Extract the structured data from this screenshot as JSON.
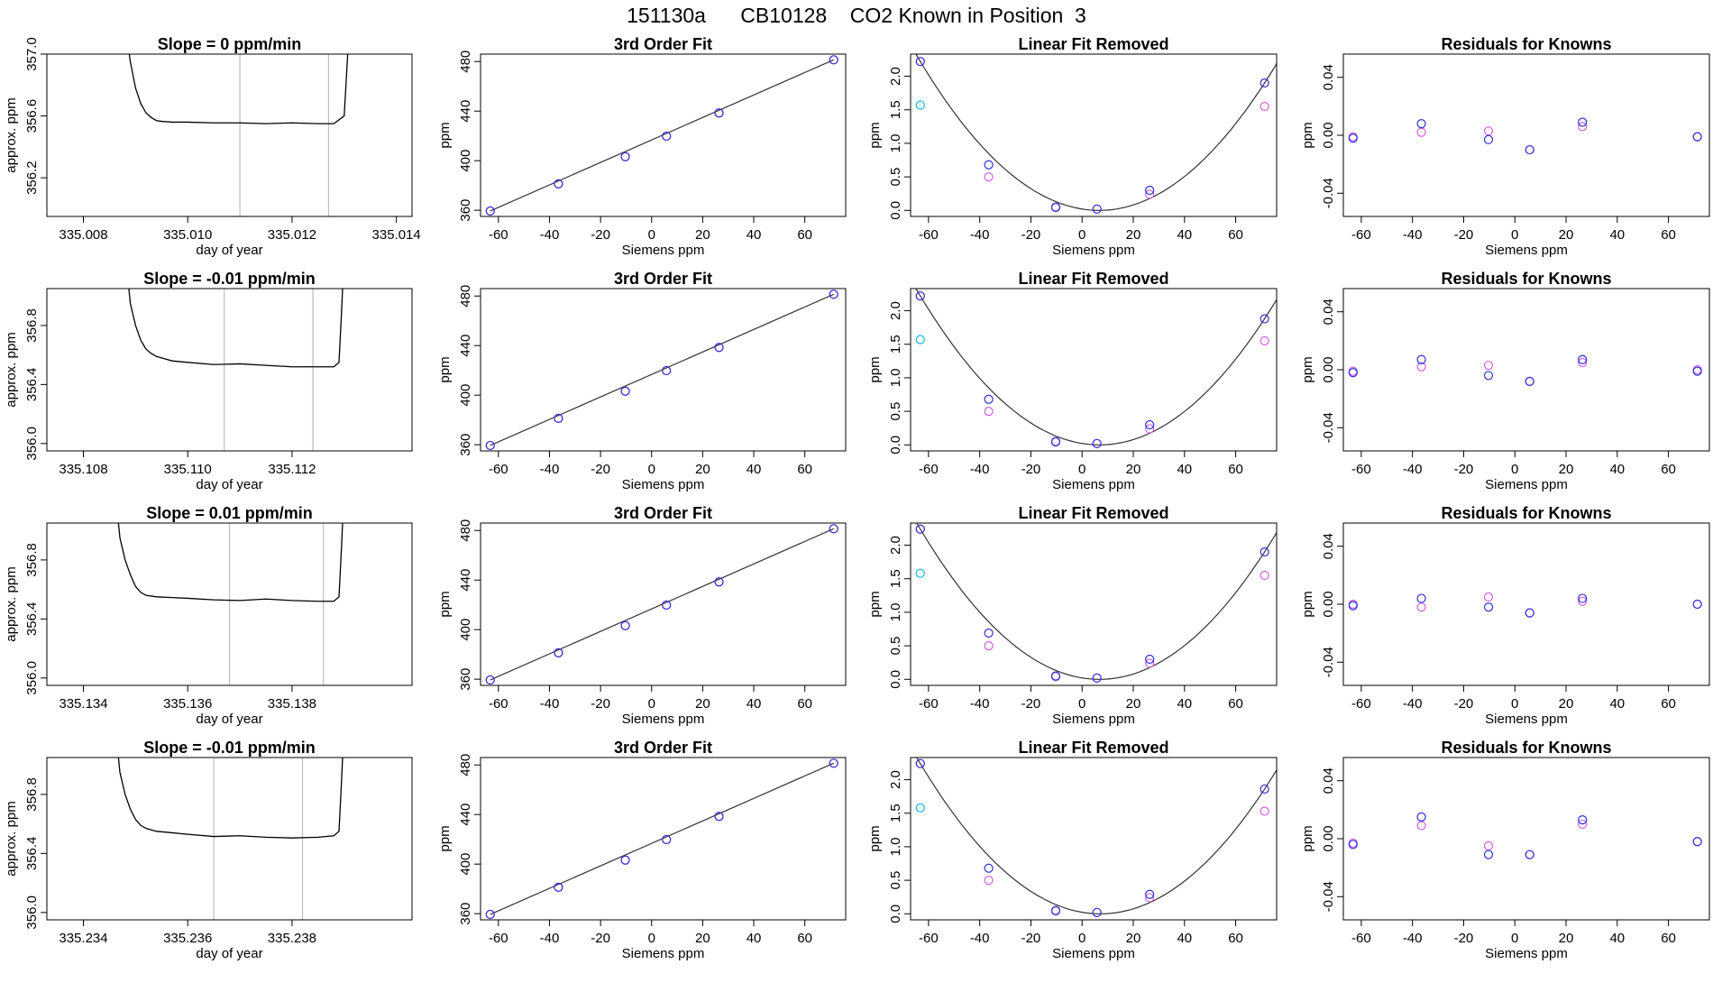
{
  "title": "151130a      CB10128    CO2 Known in Position  3",
  "colors": {
    "line": "#000000",
    "blue": "#2f2fd8",
    "magenta": "#d35fe3",
    "cyan": "#22b8e6",
    "red": "#e05050",
    "gray": "#bdbdbd"
  },
  "chart_data": [
    {
      "type": "line",
      "row": 0,
      "title": "Slope =  0  ppm/min",
      "xlabel": "day of year",
      "ylabel": "approx. ppm",
      "xlim": [
        335.0073,
        335.0143
      ],
      "ylim": [
        355.95,
        357.0
      ],
      "xticks": [
        335.008,
        335.01,
        335.012,
        335.014
      ],
      "xtick_labels": [
        "335.008",
        "335.010",
        "335.012",
        "335.014"
      ],
      "yticks": [
        356.2,
        356.6,
        357.0
      ],
      "ytick_labels": [
        "356.2",
        "356.6",
        "357.0"
      ],
      "vlines": [
        335.011,
        335.0127
      ],
      "x": [
        335.0088,
        335.0089,
        335.009,
        335.0091,
        335.0092,
        335.0093,
        335.0094,
        335.0095,
        335.0097,
        335.01,
        335.0105,
        335.011,
        335.0115,
        335.012,
        335.0125,
        335.0128,
        335.013,
        335.01305,
        335.0131
      ],
      "y": [
        357.2,
        356.95,
        356.78,
        356.68,
        356.62,
        356.59,
        356.57,
        356.565,
        356.56,
        356.56,
        356.555,
        356.555,
        356.55,
        356.555,
        356.55,
        356.55,
        356.6,
        356.9,
        357.2
      ]
    },
    {
      "type": "line",
      "row": 1,
      "title": "Slope =  -0.01  ppm/min",
      "xlabel": "day of year",
      "ylabel": "approx. ppm",
      "xlim": [
        335.1073,
        335.1143
      ],
      "ylim": [
        355.95,
        357.05
      ],
      "xticks": [
        335.108,
        335.11,
        335.112
      ],
      "xtick_labels": [
        "335.108",
        "335.110",
        "335.112"
      ],
      "yticks": [
        356.0,
        356.4,
        356.8
      ],
      "ytick_labels": [
        "356.0",
        "356.4",
        "356.8"
      ],
      "vlines": [
        335.1107,
        335.1124
      ],
      "x": [
        335.1088,
        335.1089,
        335.109,
        335.1091,
        335.1092,
        335.1093,
        335.1094,
        335.1095,
        335.1097,
        335.11,
        335.1105,
        335.111,
        335.1115,
        335.112,
        335.1125,
        335.1128,
        335.1129,
        335.11295,
        335.113
      ],
      "y": [
        357.3,
        356.95,
        356.8,
        356.7,
        356.64,
        356.61,
        356.59,
        356.58,
        356.56,
        356.55,
        356.535,
        356.54,
        356.53,
        356.52,
        356.52,
        356.52,
        356.55,
        356.9,
        357.3
      ]
    },
    {
      "type": "line",
      "row": 2,
      "title": "Slope =  0.01  ppm/min",
      "xlabel": "day of year",
      "ylabel": "approx. ppm",
      "xlim": [
        335.1333,
        335.1403
      ],
      "ylim": [
        355.95,
        357.05
      ],
      "xticks": [
        335.134,
        335.136,
        335.138
      ],
      "xtick_labels": [
        "335.134",
        "335.136",
        "335.138"
      ],
      "yticks": [
        356.0,
        356.4,
        356.8
      ],
      "ytick_labels": [
        "356.0",
        "356.4",
        "356.8"
      ],
      "vlines": [
        335.1368,
        335.1386
      ],
      "x": [
        335.1346,
        335.1347,
        335.1348,
        335.1349,
        335.135,
        335.1351,
        335.1352,
        335.1354,
        335.1357,
        335.136,
        335.1365,
        335.137,
        335.1375,
        335.138,
        335.1385,
        335.1388,
        335.1389,
        335.13895,
        335.139
      ],
      "y": [
        357.3,
        356.95,
        356.8,
        356.7,
        356.62,
        356.58,
        356.56,
        356.55,
        356.545,
        356.54,
        356.53,
        356.525,
        356.535,
        356.525,
        356.52,
        356.52,
        356.55,
        356.9,
        357.3
      ]
    },
    {
      "type": "line",
      "row": 3,
      "title": "Slope =  -0.01  ppm/min",
      "xlabel": "day of year",
      "ylabel": "approx. ppm",
      "xlim": [
        335.2333,
        335.2403
      ],
      "ylim": [
        355.95,
        357.05
      ],
      "xticks": [
        335.234,
        335.236,
        335.238
      ],
      "xtick_labels": [
        "335.234",
        "335.236",
        "335.238"
      ],
      "yticks": [
        356.0,
        356.4,
        356.8
      ],
      "ytick_labels": [
        "356.0",
        "356.4",
        "356.8"
      ],
      "vlines": [
        335.2365,
        335.2382
      ],
      "x": [
        335.2346,
        335.2347,
        335.2348,
        335.2349,
        335.235,
        335.2351,
        335.2352,
        335.2354,
        335.2357,
        335.236,
        335.2365,
        335.237,
        335.2375,
        335.238,
        335.2385,
        335.2388,
        335.2389,
        335.23895,
        335.239
      ],
      "y": [
        357.3,
        356.95,
        356.8,
        356.7,
        356.63,
        356.59,
        356.57,
        356.55,
        356.54,
        356.53,
        356.515,
        356.52,
        356.51,
        356.505,
        356.51,
        356.52,
        356.55,
        356.9,
        357.3
      ]
    },
    {
      "type": "scatter",
      "row": 0,
      "col": 1,
      "title": "3rd Order Fit",
      "xlabel": "Siemens ppm",
      "ylabel": "ppm",
      "xlim": [
        -67,
        76
      ],
      "ylim": [
        355,
        486
      ],
      "xticks": [
        -60,
        -40,
        -20,
        0,
        20,
        40,
        60
      ],
      "yticks": [
        360,
        400,
        440,
        480
      ],
      "fit": "line",
      "x": [
        -63.2,
        -36.5,
        -10.3,
        5.8,
        26.4,
        71.3
      ],
      "y_blue": [
        359.4,
        381.3,
        403.2,
        419.8,
        438.5,
        481.4
      ],
      "y_magenta": [
        359.4,
        381.3,
        403.2,
        419.8,
        438.5,
        481.4
      ]
    },
    {
      "type": "scatter",
      "row": 1,
      "col": 1,
      "title": "3rd Order Fit",
      "xlabel": "Siemens ppm",
      "ylabel": "ppm",
      "xlim": [
        -67,
        76
      ],
      "ylim": [
        355,
        486
      ],
      "xticks": [
        -60,
        -40,
        -20,
        0,
        20,
        40,
        60
      ],
      "yticks": [
        360,
        400,
        440,
        480
      ],
      "fit": "line",
      "x": [
        -63.2,
        -36.5,
        -10.3,
        5.8,
        26.4,
        71.3
      ],
      "y_blue": [
        359.4,
        381.3,
        403.2,
        419.8,
        438.5,
        481.4
      ],
      "y_magenta": [
        359.4,
        381.3,
        403.2,
        419.8,
        438.5,
        481.4
      ]
    },
    {
      "type": "scatter",
      "row": 2,
      "col": 1,
      "title": "3rd Order Fit",
      "xlabel": "Siemens ppm",
      "ylabel": "ppm",
      "xlim": [
        -67,
        76
      ],
      "ylim": [
        355,
        486
      ],
      "xticks": [
        -60,
        -40,
        -20,
        0,
        20,
        40,
        60
      ],
      "yticks": [
        360,
        400,
        440,
        480
      ],
      "fit": "line",
      "x": [
        -63.2,
        -36.5,
        -10.3,
        5.8,
        26.4,
        71.3
      ],
      "y_blue": [
        359.4,
        381.3,
        403.2,
        419.8,
        438.5,
        481.4
      ],
      "y_magenta": [
        359.4,
        381.3,
        403.2,
        419.8,
        438.5,
        481.4
      ]
    },
    {
      "type": "scatter",
      "row": 3,
      "col": 1,
      "title": "3rd Order Fit",
      "xlabel": "Siemens ppm",
      "ylabel": "ppm",
      "xlim": [
        -67,
        76
      ],
      "ylim": [
        355,
        486
      ],
      "xticks": [
        -60,
        -40,
        -20,
        0,
        20,
        40,
        60
      ],
      "yticks": [
        360,
        400,
        440,
        480
      ],
      "fit": "line",
      "x": [
        -63.2,
        -36.5,
        -10.3,
        5.8,
        26.4,
        71.3
      ],
      "y_blue": [
        359.4,
        381.3,
        403.2,
        419.8,
        438.5,
        481.4
      ],
      "y_magenta": [
        359.4,
        381.3,
        403.2,
        419.8,
        438.5,
        481.4
      ]
    },
    {
      "type": "scatter",
      "row": 0,
      "col": 2,
      "title": "Linear Fit Removed",
      "xlabel": "Siemens ppm",
      "ylabel": "ppm",
      "xlim": [
        -67,
        76
      ],
      "ylim": [
        -0.09,
        2.33
      ],
      "xticks": [
        -60,
        -40,
        -20,
        0,
        20,
        40,
        60
      ],
      "yticks": [
        0.0,
        0.5,
        1.0,
        1.5,
        2.0
      ],
      "ytick_labels": [
        "0.0",
        "0.5",
        "1.0",
        "1.5",
        "2.0"
      ],
      "fit": "curve",
      "x": [
        -63.2,
        -36.5,
        -10.3,
        5.8,
        26.4,
        71.3
      ],
      "y_blue": [
        2.22,
        0.68,
        0.05,
        0.02,
        0.3,
        1.9
      ],
      "y_magenta": [
        2.22,
        0.5,
        0.04,
        0.02,
        0.24,
        1.55
      ],
      "cyan": [
        -63.2,
        1.57
      ]
    },
    {
      "type": "scatter",
      "row": 1,
      "col": 2,
      "title": "Linear Fit Removed",
      "xlabel": "Siemens ppm",
      "ylabel": "ppm",
      "xlim": [
        -67,
        76
      ],
      "ylim": [
        -0.09,
        2.33
      ],
      "xticks": [
        -60,
        -40,
        -20,
        0,
        20,
        40,
        60
      ],
      "yticks": [
        0.0,
        0.5,
        1.0,
        1.5,
        2.0
      ],
      "ytick_labels": [
        "0.0",
        "0.5",
        "1.0",
        "1.5",
        "2.0"
      ],
      "fit": "curve",
      "x": [
        -63.2,
        -36.5,
        -10.3,
        5.8,
        26.4,
        71.3
      ],
      "y_blue": [
        2.22,
        0.68,
        0.05,
        0.02,
        0.3,
        1.88
      ],
      "y_magenta": [
        2.22,
        0.5,
        0.04,
        0.02,
        0.24,
        1.55
      ],
      "cyan": [
        -63.2,
        1.57
      ]
    },
    {
      "type": "scatter",
      "row": 2,
      "col": 2,
      "title": "Linear Fit Removed",
      "xlabel": "Siemens ppm",
      "ylabel": "ppm",
      "xlim": [
        -67,
        76
      ],
      "ylim": [
        -0.09,
        2.33
      ],
      "xticks": [
        -60,
        -40,
        -20,
        0,
        20,
        40,
        60
      ],
      "yticks": [
        0.0,
        0.5,
        1.0,
        1.5,
        2.0
      ],
      "ytick_labels": [
        "0.0",
        "0.5",
        "1.0",
        "1.5",
        "2.0"
      ],
      "fit": "curve",
      "x": [
        -63.2,
        -36.5,
        -10.3,
        5.8,
        26.4,
        71.3
      ],
      "y_blue": [
        2.24,
        0.69,
        0.05,
        0.02,
        0.3,
        1.9
      ],
      "y_magenta": [
        2.24,
        0.5,
        0.04,
        0.02,
        0.24,
        1.55
      ],
      "cyan": [
        -63.2,
        1.58
      ]
    },
    {
      "type": "scatter",
      "row": 3,
      "col": 2,
      "title": "Linear Fit Removed",
      "xlabel": "Siemens ppm",
      "ylabel": "ppm",
      "xlim": [
        -67,
        76
      ],
      "ylim": [
        -0.09,
        2.33
      ],
      "xticks": [
        -60,
        -40,
        -20,
        0,
        20,
        40,
        60
      ],
      "yticks": [
        0.0,
        0.5,
        1.0,
        1.5,
        2.0
      ],
      "ytick_labels": [
        "0.0",
        "0.5",
        "1.0",
        "1.5",
        "2.0"
      ],
      "fit": "curve",
      "x": [
        -63.2,
        -36.5,
        -10.3,
        5.8,
        26.4,
        71.3
      ],
      "y_blue": [
        2.24,
        0.68,
        0.05,
        0.02,
        0.29,
        1.86
      ],
      "y_magenta": [
        2.24,
        0.5,
        0.04,
        0.02,
        0.24,
        1.53
      ],
      "cyan": [
        -63.2,
        1.58
      ]
    },
    {
      "type": "scatter",
      "row": 0,
      "col": 3,
      "title": "Residuals for Knowns",
      "xlabel": "Siemens ppm",
      "ylabel": "ppm",
      "xlim": [
        -67,
        76
      ],
      "ylim": [
        -0.056,
        0.056
      ],
      "xticks": [
        -60,
        -40,
        -20,
        0,
        20,
        40,
        60
      ],
      "yticks": [
        -0.04,
        0.0,
        0.04
      ],
      "ytick_labels": [
        "-0.04",
        "0.00",
        "0.04"
      ],
      "x": [
        -63.2,
        -36.5,
        -10.3,
        5.8,
        26.4,
        71.3
      ],
      "y_blue": [
        -0.002,
        0.008,
        -0.003,
        -0.01,
        0.009,
        -0.001
      ],
      "y_magenta": [
        -0.001,
        0.002,
        0.003,
        -0.01,
        0.006,
        -0.001
      ]
    },
    {
      "type": "scatter",
      "row": 1,
      "col": 3,
      "title": "Residuals for Knowns",
      "xlabel": "Siemens ppm",
      "ylabel": "ppm",
      "xlim": [
        -67,
        76
      ],
      "ylim": [
        -0.056,
        0.056
      ],
      "xticks": [
        -60,
        -40,
        -20,
        0,
        20,
        40,
        60
      ],
      "yticks": [
        -0.04,
        0.0,
        0.04
      ],
      "ytick_labels": [
        "-0.04",
        "0.00",
        "0.04"
      ],
      "x": [
        -63.2,
        -36.5,
        -10.3,
        5.8,
        26.4,
        71.3
      ],
      "y_blue": [
        -0.002,
        0.007,
        -0.004,
        -0.008,
        0.007,
        -0.001
      ],
      "y_magenta": [
        -0.001,
        0.002,
        0.003,
        -0.008,
        0.005,
        0.0
      ]
    },
    {
      "type": "scatter",
      "row": 2,
      "col": 3,
      "title": "Residuals for Knowns",
      "xlabel": "Siemens ppm",
      "ylabel": "ppm",
      "xlim": [
        -67,
        76
      ],
      "ylim": [
        -0.056,
        0.056
      ],
      "xticks": [
        -60,
        -40,
        -20,
        0,
        20,
        40,
        60
      ],
      "yticks": [
        -0.04,
        0.0,
        0.04
      ],
      "ytick_labels": [
        "-0.04",
        "0.00",
        "0.04"
      ],
      "x": [
        -63.2,
        -36.5,
        -10.3,
        5.8,
        26.4,
        71.3
      ],
      "y_blue": [
        -0.001,
        0.004,
        -0.002,
        -0.006,
        0.004,
        0.0
      ],
      "y_magenta": [
        0.0,
        -0.002,
        0.005,
        -0.006,
        0.002,
        0.0
      ]
    },
    {
      "type": "scatter",
      "row": 3,
      "col": 3,
      "title": "Residuals for Knowns",
      "xlabel": "Siemens ppm",
      "ylabel": "ppm",
      "xlim": [
        -67,
        76
      ],
      "ylim": [
        -0.056,
        0.056
      ],
      "xticks": [
        -60,
        -40,
        -20,
        0,
        20,
        40,
        60
      ],
      "yticks": [
        -0.04,
        0.0,
        0.04
      ],
      "ytick_labels": [
        "-0.04",
        "0.00",
        "0.04"
      ],
      "x": [
        -63.2,
        -36.5,
        -10.3,
        5.8,
        26.4,
        71.3
      ],
      "y_blue": [
        -0.004,
        0.015,
        -0.011,
        -0.011,
        0.013,
        -0.002
      ],
      "y_magenta": [
        -0.003,
        0.009,
        -0.005,
        -0.011,
        0.01,
        -0.002
      ]
    }
  ]
}
